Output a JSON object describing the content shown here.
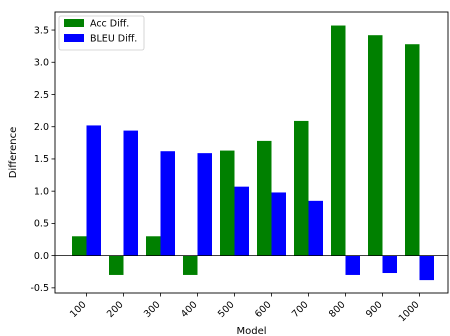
{
  "chart_data": {
    "type": "bar",
    "categories": [
      "100",
      "200",
      "300",
      "400",
      "500",
      "600",
      "700",
      "800",
      "900",
      "1000"
    ],
    "series": [
      {
        "name": "Acc Diff.",
        "color": "#008000",
        "values": [
          0.3,
          -0.3,
          0.3,
          -0.3,
          1.63,
          1.78,
          2.09,
          3.57,
          3.42,
          3.28
        ]
      },
      {
        "name": "BLEU Diff.",
        "color": "#0000ff",
        "values": [
          2.02,
          1.94,
          1.62,
          1.59,
          1.07,
          0.98,
          0.85,
          -0.3,
          -0.27,
          -0.38
        ]
      }
    ],
    "title": "",
    "xlabel": "Model",
    "ylabel": "Difference",
    "ylim": [
      -0.58,
      3.78
    ],
    "yticks": [
      -0.5,
      0.0,
      0.5,
      1.0,
      1.5,
      2.0,
      2.5,
      3.0,
      3.5
    ],
    "ytick_labels": [
      "-0.5",
      "0.0",
      "0.5",
      "1.0",
      "1.5",
      "2.0",
      "2.5",
      "3.0",
      "3.5"
    ],
    "legend_position": "top-left",
    "grid": false
  }
}
